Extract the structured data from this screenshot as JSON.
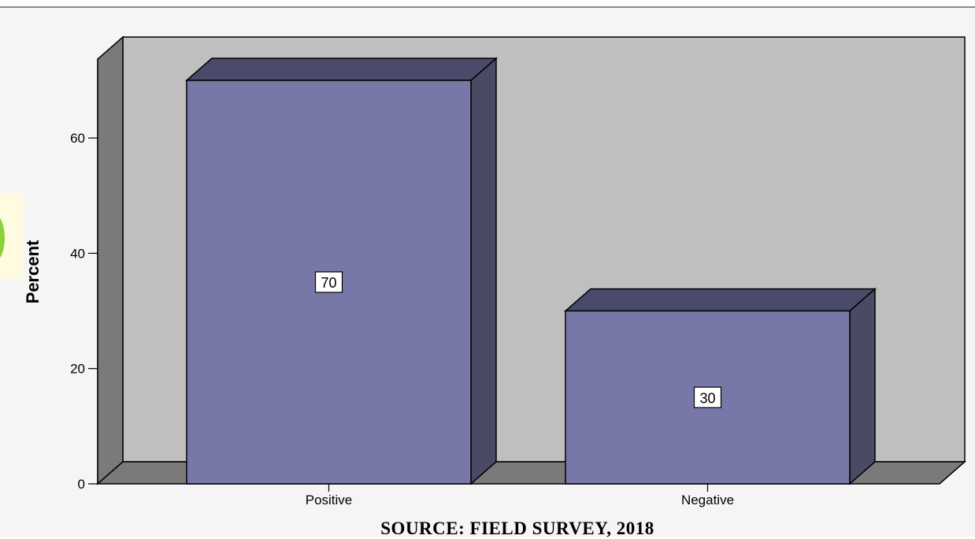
{
  "chart_data": {
    "type": "bar",
    "style": "3d",
    "categories": [
      "Positive",
      "Negative"
    ],
    "values": [
      70,
      30
    ],
    "data_labels": [
      "70",
      "30"
    ],
    "title": "",
    "xlabel": "",
    "ylabel": "Percent",
    "ylim": [
      0,
      70
    ],
    "yticks": [
      0,
      20,
      40,
      60
    ],
    "grid": false,
    "legend": "none",
    "colors": {
      "bar_front": "#7878a8",
      "bar_top": "#4a4a6a",
      "bar_side": "#4a4a64",
      "wall": "#bfbfbf",
      "wall_side": "#7a7a7a",
      "floor": "#7a7a7a"
    }
  },
  "footer": {
    "source": "SOURCE: FIELD SURVEY, 2018"
  }
}
